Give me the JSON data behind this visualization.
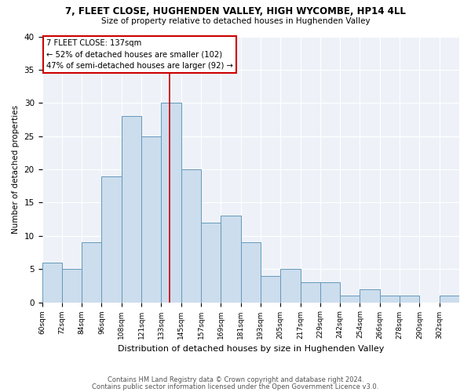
{
  "title1": "7, FLEET CLOSE, HUGHENDEN VALLEY, HIGH WYCOMBE, HP14 4LL",
  "title2": "Size of property relative to detached houses in Hughenden Valley",
  "xlabel": "Distribution of detached houses by size in Hughenden Valley",
  "ylabel": "Number of detached properties",
  "footer1": "Contains HM Land Registry data © Crown copyright and database right 2024.",
  "footer2": "Contains public sector information licensed under the Open Government Licence v3.0.",
  "annotation_title": "7 FLEET CLOSE: 137sqm",
  "annotation_line1": "← 52% of detached houses are smaller (102)",
  "annotation_line2": "47% of semi-detached houses are larger (92) →",
  "property_size_idx": 6.4,
  "bar_color": "#ccdded",
  "bar_edge_color": "#6699bb",
  "vline_color": "#cc0000",
  "annotation_box_color": "white",
  "annotation_box_edge_color": "#cc0000",
  "background_color": "#eef2f8",
  "categories": [
    "60sqm",
    "72sqm",
    "84sqm",
    "96sqm",
    "108sqm",
    "121sqm",
    "133sqm",
    "145sqm",
    "157sqm",
    "169sqm",
    "181sqm",
    "193sqm",
    "205sqm",
    "217sqm",
    "229sqm",
    "242sqm",
    "254sqm",
    "266sqm",
    "278sqm",
    "290sqm",
    "302sqm"
  ],
  "values": [
    6,
    5,
    9,
    19,
    28,
    25,
    30,
    20,
    12,
    13,
    9,
    4,
    5,
    3,
    3,
    1,
    2,
    1,
    1,
    0,
    1
  ],
  "ylim": [
    0,
    40
  ],
  "yticks": [
    0,
    5,
    10,
    15,
    20,
    25,
    30,
    35,
    40
  ]
}
